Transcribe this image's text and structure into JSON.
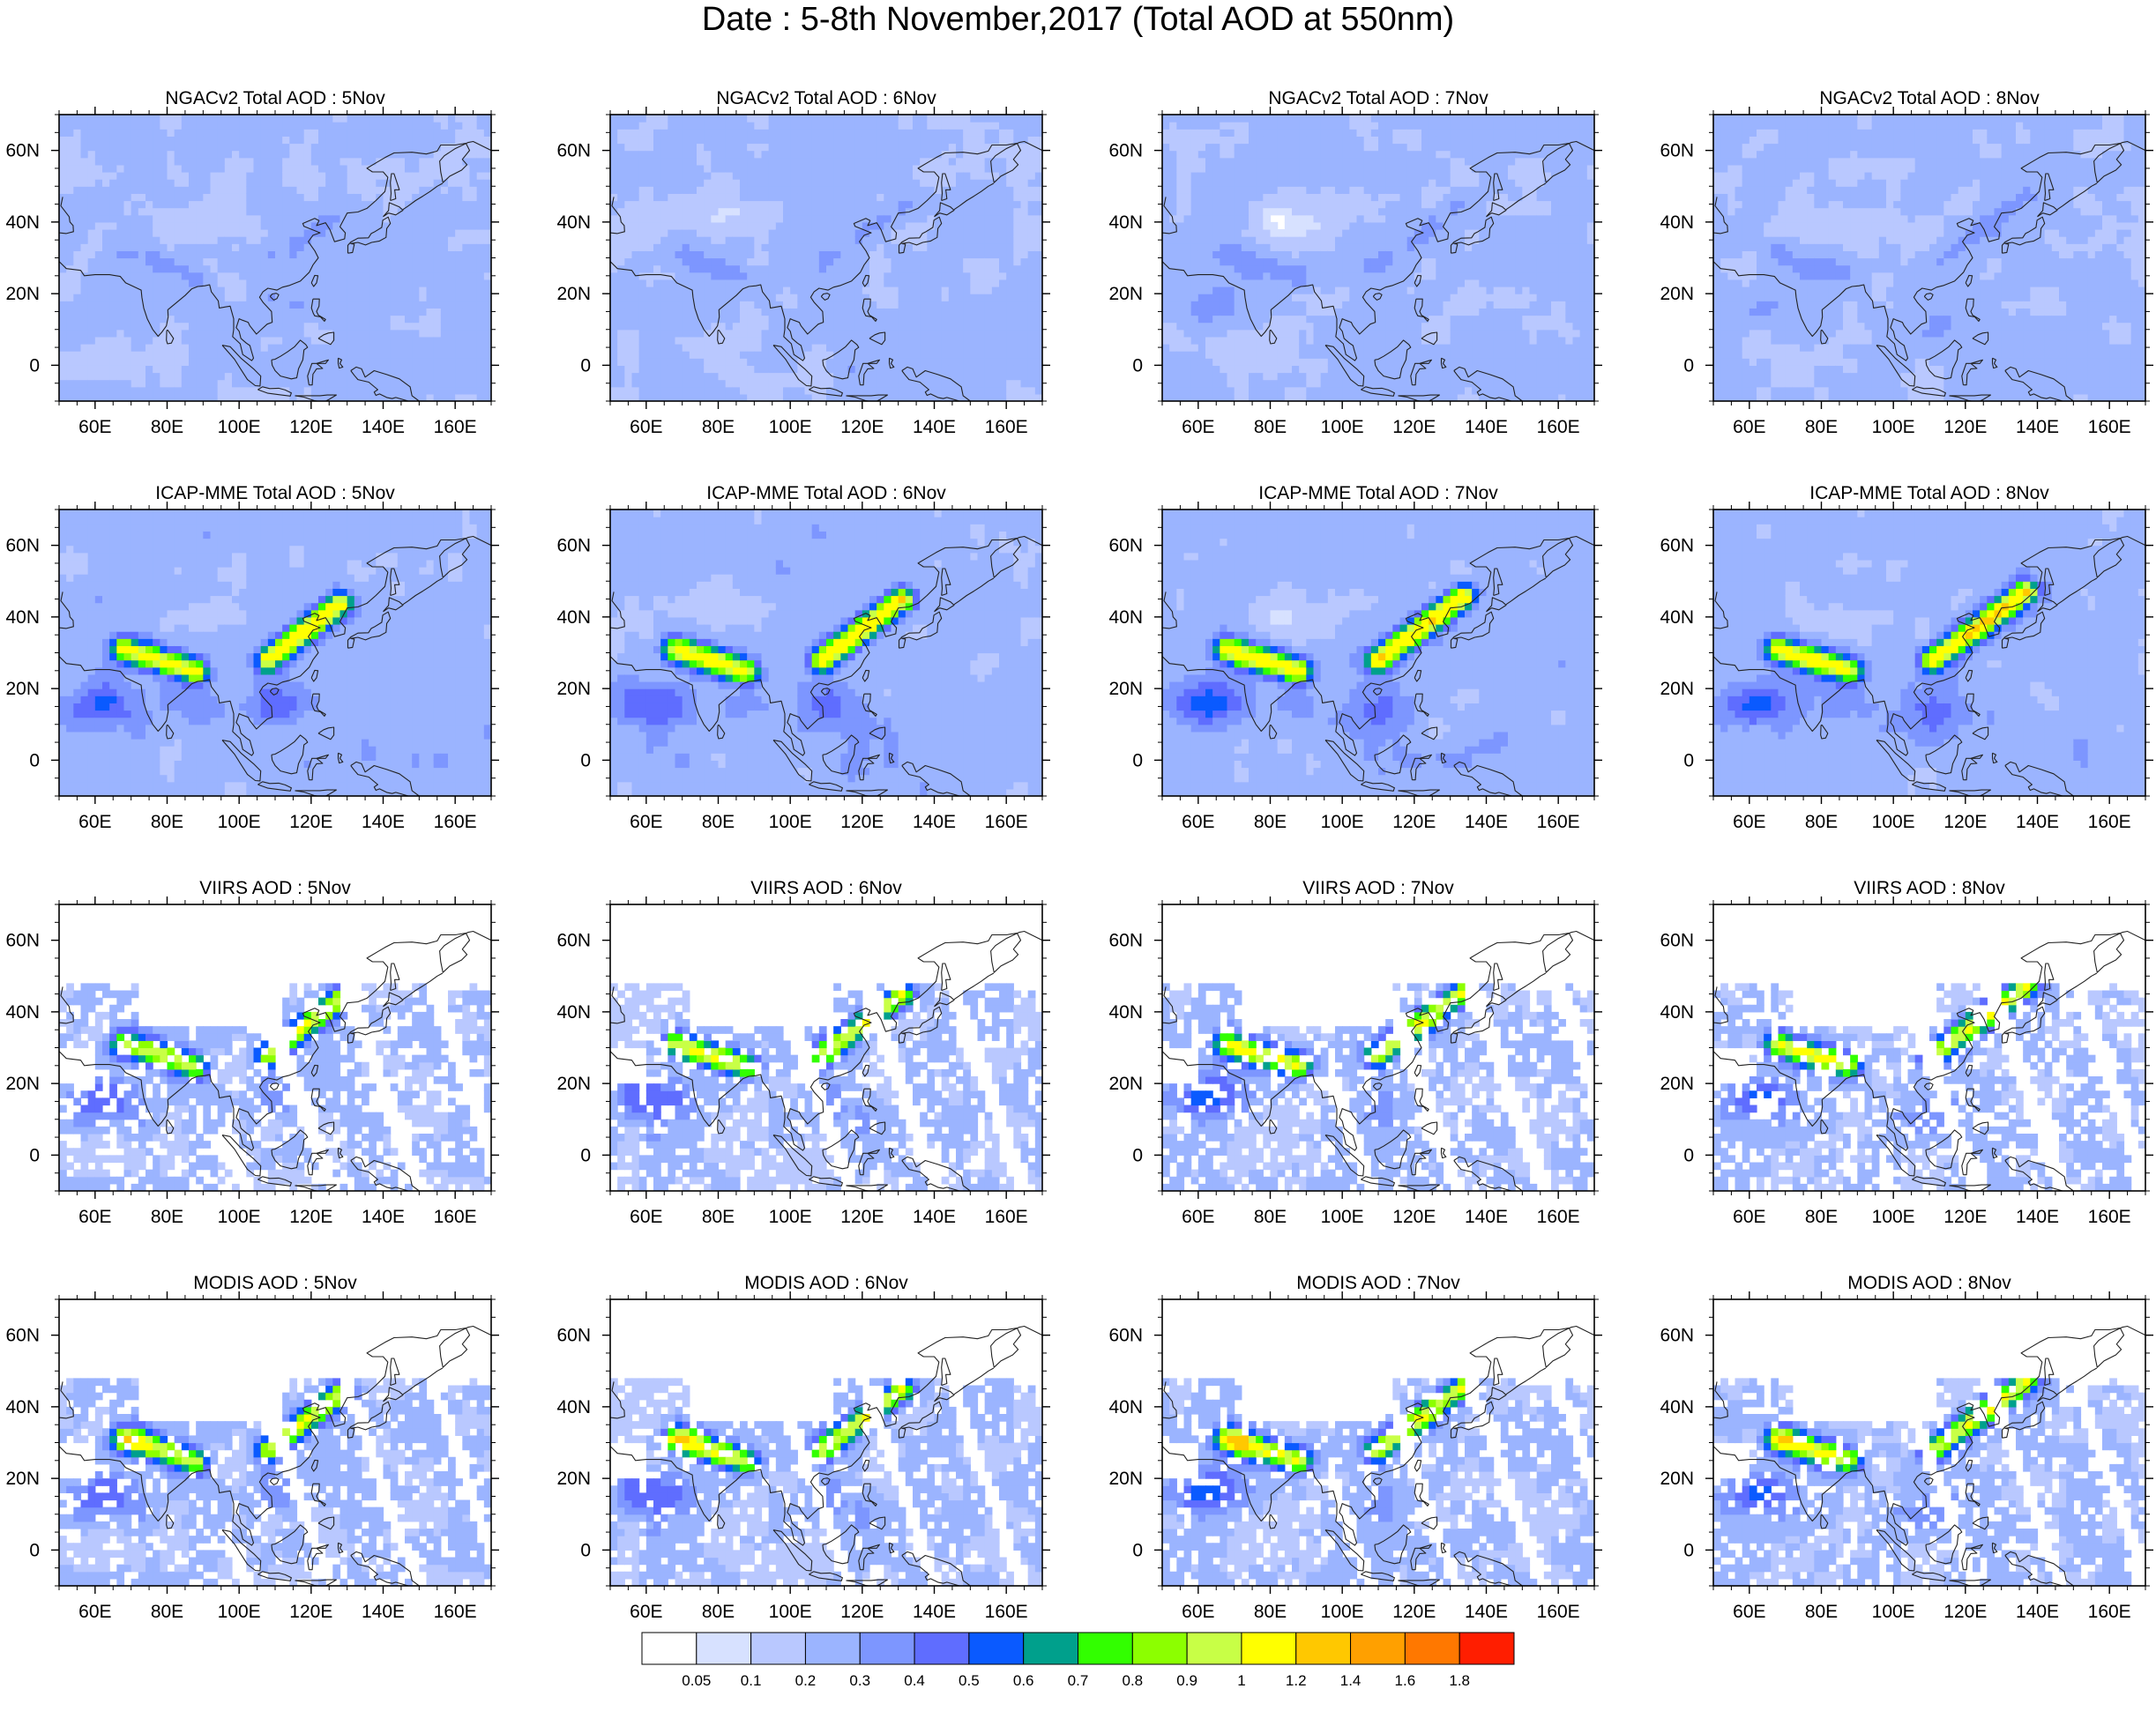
{
  "title": "Date : 5-8th November,2017 (Total AOD at 550nm)",
  "map_extent": {
    "lon_min": 50,
    "lon_max": 170,
    "lat_min": -10,
    "lat_max": 70
  },
  "lon_ticks": [
    {
      "value": 60,
      "label": "60E"
    },
    {
      "value": 80,
      "label": "80E"
    },
    {
      "value": 100,
      "label": "100E"
    },
    {
      "value": 120,
      "label": "120E"
    },
    {
      "value": 140,
      "label": "140E"
    },
    {
      "value": 160,
      "label": "160E"
    }
  ],
  "lat_ticks": [
    {
      "value": 60,
      "label": "60N"
    },
    {
      "value": 40,
      "label": "40N"
    },
    {
      "value": 20,
      "label": "20N"
    },
    {
      "value": 0,
      "label": "0"
    }
  ],
  "rows": [
    {
      "product": "NGACv2 Total AOD",
      "kind": "model_ngac"
    },
    {
      "product": "ICAP-MME Total AOD",
      "kind": "model_icap"
    },
    {
      "product": "VIIRS AOD",
      "kind": "sat_viirs"
    },
    {
      "product": "MODIS AOD",
      "kind": "sat_modis"
    }
  ],
  "panels": [
    {
      "title": "NGACv2 Total AOD : 5Nov"
    },
    {
      "title": "NGACv2 Total AOD : 6Nov"
    },
    {
      "title": "NGACv2 Total AOD : 7Nov"
    },
    {
      "title": "NGACv2 Total AOD : 8Nov"
    },
    {
      "title": "ICAP-MME Total AOD : 5Nov"
    },
    {
      "title": "ICAP-MME Total AOD : 6Nov"
    },
    {
      "title": "ICAP-MME Total AOD : 7Nov"
    },
    {
      "title": "ICAP-MME Total AOD : 8Nov"
    },
    {
      "title": "VIIRS AOD : 5Nov"
    },
    {
      "title": "VIIRS AOD : 6Nov"
    },
    {
      "title": "VIIRS AOD : 7Nov"
    },
    {
      "title": "VIIRS AOD : 8Nov"
    },
    {
      "title": "MODIS AOD : 5Nov"
    },
    {
      "title": "MODIS AOD : 6Nov"
    },
    {
      "title": "MODIS AOD : 7Nov"
    },
    {
      "title": "MODIS AOD : 8Nov"
    }
  ],
  "colorbar": {
    "colors": [
      "#ffffff",
      "#d7e1ff",
      "#b9c8ff",
      "#9bb4ff",
      "#7d96ff",
      "#5f6dff",
      "#0a5aff",
      "#00a08c",
      "#32ff00",
      "#8cff00",
      "#c8ff46",
      "#ffff00",
      "#ffc800",
      "#ffa000",
      "#ff7800",
      "#ff1e00"
    ],
    "labels": [
      "0.05",
      "0.1",
      "0.2",
      "0.3",
      "0.4",
      "0.5",
      "0.6",
      "0.7",
      "0.8",
      "0.9",
      "1",
      "1.2",
      "1.4",
      "1.6",
      "1.8"
    ]
  },
  "coastline_color": "#222222"
}
